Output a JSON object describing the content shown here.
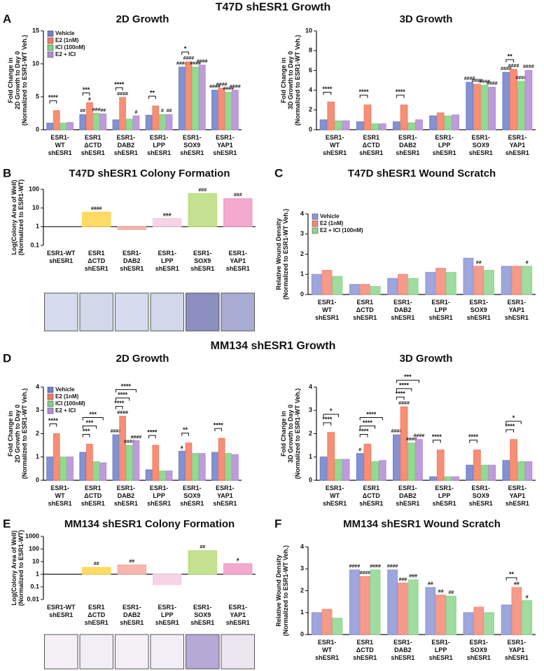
{
  "section_titles": [
    "T47D shESR1 Growth",
    "MM134 shESR1 Growth"
  ],
  "chart_data": [
    {
      "type": "bar",
      "panel": "A",
      "title": "2D Growth",
      "ylabel": "Fold Change in\n2D Growth to Day 0\n(Normalized to ESR1-WT Veh.)",
      "categories": [
        "ESR1-\nWT\nshESR1",
        "ESR1\nΔCTD\nshESR1",
        "ESR1-\nDAB2\nshESR1",
        "ESR1-\nLPP\nshESR1",
        "ESR1-\nSOX9\nshESR1",
        "ESR1-\nYAP1\nshESR1"
      ],
      "series": [
        {
          "name": "Vehicle",
          "color": "#6f7fc9",
          "values": [
            1,
            2.3,
            1.5,
            2.2,
            9.5,
            6.0
          ],
          "hash_labels": [
            null,
            "##",
            null,
            null,
            "####",
            "####"
          ]
        },
        {
          "name": "E2 (1nM)",
          "color": "#f47b5e",
          "values": [
            2.9,
            4.1,
            4.9,
            3.6,
            10.3,
            6.3
          ],
          "hash_labels": [
            null,
            "#",
            "####",
            null,
            "####",
            "####"
          ]
        },
        {
          "name": "ICI (100nM)",
          "color": "#7fd27f",
          "values": [
            1,
            2.5,
            1.6,
            2.3,
            9.5,
            5.7
          ],
          "hash_labels": [
            null,
            "###",
            null,
            "#",
            "####",
            "####"
          ]
        },
        {
          "name": "E2 + ICI",
          "color": "#b58ad6",
          "values": [
            1.1,
            2.4,
            2.1,
            2.3,
            9.8,
            6.0
          ],
          "hash_labels": [
            null,
            "##",
            "#",
            "##",
            "####",
            "####"
          ]
        }
      ],
      "bracket_labels": [
        [
          "****"
        ],
        [
          "***"
        ],
        [
          "****"
        ],
        [
          "**"
        ],
        [
          "*"
        ],
        null
      ],
      "ylim": [
        0,
        15
      ],
      "yticks": [
        0,
        5,
        10,
        15
      ],
      "legend": "upper-left"
    },
    {
      "type": "bar",
      "title": "3D Growth",
      "ylabel": "Fold Change in\n3D Growth to Day 0\n(Normalized to ESR1-WT Veh.)",
      "categories": [
        "ESR1-\nWT\nshESR1",
        "ESR1\nΔCTD\nshESR1",
        "ESR1-\nDAB2\nshESR1",
        "ESR1-\nLPP\nshESR1",
        "ESR1-\nSOX9\nshESR1",
        "ESR1-\nYAP1\nshESR1"
      ],
      "series": [
        {
          "name": "Vehicle",
          "color": "#6f7fc9",
          "values": [
            1,
            0.8,
            0.8,
            1.4,
            4.8,
            5.8
          ],
          "hash_labels": [
            null,
            null,
            null,
            null,
            "####",
            "####"
          ]
        },
        {
          "name": "E2 (1nM)",
          "color": "#f47b5e",
          "values": [
            2.8,
            2.5,
            2.5,
            1.7,
            4.6,
            6.1
          ],
          "hash_labels": [
            null,
            null,
            null,
            null,
            "####",
            "####"
          ]
        },
        {
          "name": "ICI (100nM)",
          "color": "#7fd27f",
          "values": [
            0.9,
            0.6,
            0.7,
            1.4,
            4.5,
            4.9
          ],
          "hash_labels": [
            null,
            null,
            null,
            null,
            "####",
            "####"
          ]
        },
        {
          "name": "E2 + ICI",
          "color": "#b58ad6",
          "values": [
            0.9,
            0.6,
            1.0,
            1.5,
            4.3,
            6.0
          ],
          "hash_labels": [
            null,
            null,
            null,
            null,
            "####",
            "####"
          ]
        }
      ],
      "bracket_labels": [
        [
          "****"
        ],
        [
          "****"
        ],
        [
          "****"
        ],
        null,
        null,
        [
          "**"
        ]
      ],
      "ylim": [
        0,
        10
      ],
      "yticks": [
        0,
        2,
        4,
        6,
        8,
        10
      ]
    },
    {
      "type": "bar",
      "panel": "B",
      "title": "T47D shESR1 Colony Formation",
      "ylabel": "Log(Colony Area of Well)\n(Normalized to ESR1-WT)",
      "categories": [
        "ESR1-WT\nshESR1",
        "ESR1\nΔCTD\nshESR1",
        "ESR1-\nDAB2\nshESR1",
        "ESR1-\nLPP\nshESR1",
        "ESR1-\nSOX9\nshESR1",
        "ESR1-\nYAP1\nshESR1"
      ],
      "values": [
        1,
        6,
        0.7,
        2.8,
        60,
        32
      ],
      "colors": [
        "#b8c4e8",
        "#ffd54a",
        "#f4a9a0",
        "#f5cde0",
        "#b9dc7c",
        "#f29ac5"
      ],
      "hash_labels": [
        null,
        "####",
        null,
        "###",
        "###",
        "###"
      ],
      "log_scale": true,
      "ylim": [
        0.1,
        100
      ],
      "yticks": [
        0.1,
        1,
        10,
        100
      ]
    },
    {
      "type": "bar",
      "panel": "C",
      "title": "T47D shESR1 Wound Scratch",
      "ylabel": "Relative Wound Density\n(Normalized to ESR1-WT Veh.)",
      "categories": [
        "ESR1-\nWT\nshESR1",
        "ESR1\nΔCTD\nshESR1",
        "ESR1-\nDAB2\nshESR1",
        "ESR1-\nLPP\nshESR1",
        "ESR1-\nSOX9\nshESR1",
        "ESR1-\nYAP1\nshESR1"
      ],
      "series": [
        {
          "name": "Vehicle",
          "color": "#8d97d6",
          "values": [
            1.0,
            0.5,
            0.8,
            1.1,
            1.8,
            1.4
          ],
          "hash_labels": [
            null,
            null,
            null,
            null,
            null,
            null
          ]
        },
        {
          "name": "E2 (1nM)",
          "color": "#f38a78",
          "values": [
            1.2,
            0.5,
            1.0,
            1.3,
            1.4,
            1.4
          ],
          "hash_labels": [
            null,
            null,
            null,
            null,
            "##",
            null
          ]
        },
        {
          "name": "E2 + ICI (100nM)",
          "color": "#8fd690",
          "values": [
            0.9,
            0.4,
            0.8,
            1.1,
            1.2,
            1.4
          ],
          "hash_labels": [
            null,
            null,
            null,
            null,
            null,
            "#"
          ]
        }
      ],
      "ylim": [
        0,
        4
      ],
      "yticks": [
        0,
        1,
        2,
        3,
        4
      ],
      "legend": "upper-left"
    },
    {
      "type": "bar",
      "panel": "D",
      "title": "2D Growth",
      "ylabel": "Fold Change in\n2D Growth to Day 0\n(Normalized to ESR1-WT Veh.)",
      "categories": [
        "ESR1-\nWT\nshESR1",
        "ESR1\nΔCTD\nshESR1",
        "ESR1-\nDAB2\nshESR1",
        "ESR1-\nLPP\nshESR1",
        "ESR1-\nSOX9\nshESR1",
        "ESR1-\nYAP1\nshESR1"
      ],
      "series": [
        {
          "name": "Vehicle",
          "color": "#6f7fc9",
          "values": [
            1,
            1.2,
            1.95,
            0.45,
            1.25,
            1.2
          ],
          "hash_labels": [
            null,
            null,
            "####",
            null,
            "#",
            null
          ]
        },
        {
          "name": "E2 (1nM)",
          "color": "#f47b5e",
          "values": [
            2,
            1.55,
            2.75,
            1.5,
            1.6,
            1.8
          ],
          "hash_labels": [
            null,
            null,
            "####",
            null,
            null,
            null
          ]
        },
        {
          "name": "ICI (100nM)",
          "color": "#7fd27f",
          "values": [
            1,
            0.8,
            1.5,
            0.4,
            1.15,
            1.15
          ],
          "hash_labels": [
            null,
            null,
            "####",
            null,
            null,
            null
          ]
        },
        {
          "name": "E2 + ICI",
          "color": "#b58ad6",
          "values": [
            1,
            0.75,
            1.7,
            0.4,
            1.15,
            1.1
          ],
          "hash_labels": [
            null,
            null,
            "####",
            null,
            null,
            null
          ]
        }
      ],
      "bracket_labels": [
        [
          "****"
        ],
        [
          "***",
          "***",
          "***"
        ],
        [
          "****",
          "****",
          "****"
        ],
        [
          "****"
        ],
        [
          "**"
        ],
        [
          "****"
        ]
      ],
      "ylim": [
        0,
        4
      ],
      "yticks": [
        0,
        1,
        2,
        3,
        4
      ],
      "legend": "upper-left"
    },
    {
      "type": "bar",
      "title": "3D Growth",
      "ylabel": "Fold Change in\n3D Growth to Day 0\n(Normalized to ESR1-WT Veh.)",
      "categories": [
        "ESR1-\nWT\nshESR1",
        "ESR1\nΔCTD\nshESR1",
        "ESR1-\nDAB2\nshESR1",
        "ESR1-\nLPP\nshESR1",
        "ESR1-\nSOX9\nshESR1",
        "ESR1-\nYAP1\nshESR1"
      ],
      "series": [
        {
          "name": "Vehicle",
          "color": "#6f7fc9",
          "values": [
            1,
            1.15,
            1.95,
            0.15,
            0.65,
            0.85
          ],
          "hash_labels": [
            null,
            "#",
            "####",
            null,
            null,
            null
          ]
        },
        {
          "name": "E2 (1nM)",
          "color": "#f47b5e",
          "values": [
            2.05,
            1.55,
            3.15,
            1.3,
            1.3,
            1.75
          ],
          "hash_labels": [
            null,
            null,
            "####",
            null,
            null,
            null
          ]
        },
        {
          "name": "ICI (100nM)",
          "color": "#7fd27f",
          "values": [
            0.9,
            0.8,
            1.6,
            0.15,
            0.65,
            0.8
          ],
          "hash_labels": [
            null,
            null,
            "####",
            null,
            null,
            null
          ]
        },
        {
          "name": "E2 + ICI",
          "color": "#b58ad6",
          "values": [
            0.9,
            0.85,
            1.75,
            0.15,
            0.65,
            0.8
          ],
          "hash_labels": [
            null,
            null,
            "####",
            null,
            null,
            null
          ]
        }
      ],
      "bracket_labels": [
        [
          "****",
          "*"
        ],
        [
          "****",
          "****",
          "****"
        ],
        [
          "****",
          "****",
          "***"
        ],
        [
          "****"
        ],
        [
          "****"
        ],
        [
          "****",
          "*"
        ]
      ],
      "ylim": [
        0,
        4
      ],
      "yticks": [
        0,
        1,
        2,
        3,
        4
      ]
    },
    {
      "type": "bar",
      "panel": "E",
      "title": "MM134 shESR1 Colony Formation",
      "ylabel": "Log(Colony Area of Well)\n(Normalized to ESR1-WT)",
      "categories": [
        "ESR1-WT\nshESR1",
        "ESR1\nΔCTD\nshESR1",
        "ESR1-\nDAB2\nshESR1",
        "ESR1-\nLPP\nshESR1",
        "ESR1-\nSOX9\nshESR1",
        "ESR1-\nYAP1\nshESR1"
      ],
      "values": [
        1,
        3.5,
        5.5,
        0.15,
        75,
        7
      ],
      "colors": [
        "#b8c4e8",
        "#ffd54a",
        "#f4a9a0",
        "#f5cde0",
        "#b9dc7c",
        "#f29ac5"
      ],
      "hash_labels": [
        null,
        "##",
        "##",
        null,
        "##",
        "#"
      ],
      "log_scale": true,
      "ylim": [
        0.01,
        1000
      ],
      "yticks": [
        0.01,
        0.1,
        1,
        10,
        100,
        1000
      ]
    },
    {
      "type": "bar",
      "panel": "F",
      "title": "MM134 shESR1 Wound Scratch",
      "ylabel": "Relative Wound Density\n(Normalized to ESR1-WT Veh.)",
      "categories": [
        "ESR1-\nWT\nshESR1",
        "ESR1\nΔCTD\nshESR1",
        "ESR1-\nDAB2\nshESR1",
        "ESR1-\nLPP\nshESR1",
        "ESR1-\nSOX9\nshESR1",
        "ESR1-\nYAP1\nshESR1"
      ],
      "series": [
        {
          "name": "Vehicle",
          "color": "#8d97d6",
          "values": [
            1.0,
            2.95,
            2.95,
            2.15,
            1.0,
            1.35
          ],
          "hash_labels": [
            null,
            "####",
            "####",
            "##",
            null,
            null
          ]
        },
        {
          "name": "E2 (1nM)",
          "color": "#f38a78",
          "values": [
            1.15,
            2.65,
            2.35,
            1.8,
            1.25,
            2.15
          ],
          "hash_labels": [
            null,
            "####",
            "###",
            "##",
            null,
            "##"
          ]
        },
        {
          "name": "E2 + ICI (100nM)",
          "color": "#8fd690",
          "values": [
            0.75,
            2.95,
            2.5,
            1.75,
            1.0,
            1.55
          ],
          "hash_labels": [
            null,
            "####",
            "###",
            "##",
            null,
            "#"
          ]
        }
      ],
      "bracket_labels": [
        null,
        null,
        null,
        null,
        null,
        [
          "**"
        ]
      ],
      "ylim": [
        0,
        4
      ],
      "yticks": [
        0,
        1,
        2,
        3,
        4
      ]
    }
  ]
}
